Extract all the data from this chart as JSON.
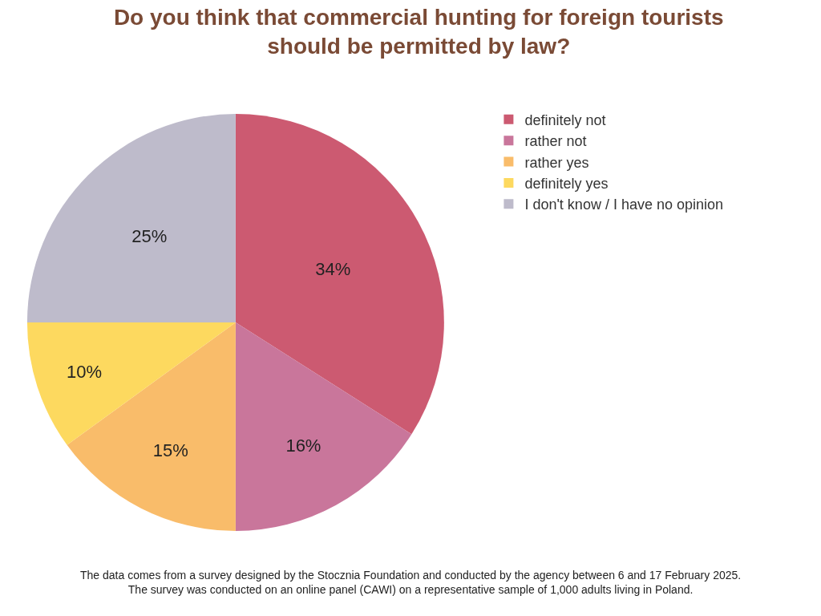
{
  "chart_data": {
    "type": "pie",
    "title": "Do you think that commercial hunting for foreign tourists\nshould be permitted by law?",
    "categories": [
      "definitely not",
      "rather not",
      "rather yes",
      "definitely yes",
      "I don't know / I have no opinion"
    ],
    "values": [
      34,
      16,
      15,
      10,
      25
    ],
    "value_labels": [
      "34%",
      "16%",
      "15%",
      "10%",
      "25%"
    ],
    "colors": [
      "#cc5a71",
      "#c9769b",
      "#f9bc6a",
      "#fdd95f",
      "#bebbcb"
    ],
    "legend": "top right",
    "annotations": [
      "The data comes from a survey designed by the Stocznia Foundation and conducted by the agency between 6 and 17 February 2025.\nThe survey was conducted on an online panel (CAWI) on a representative sample of 1,000 adults living in Poland."
    ]
  }
}
